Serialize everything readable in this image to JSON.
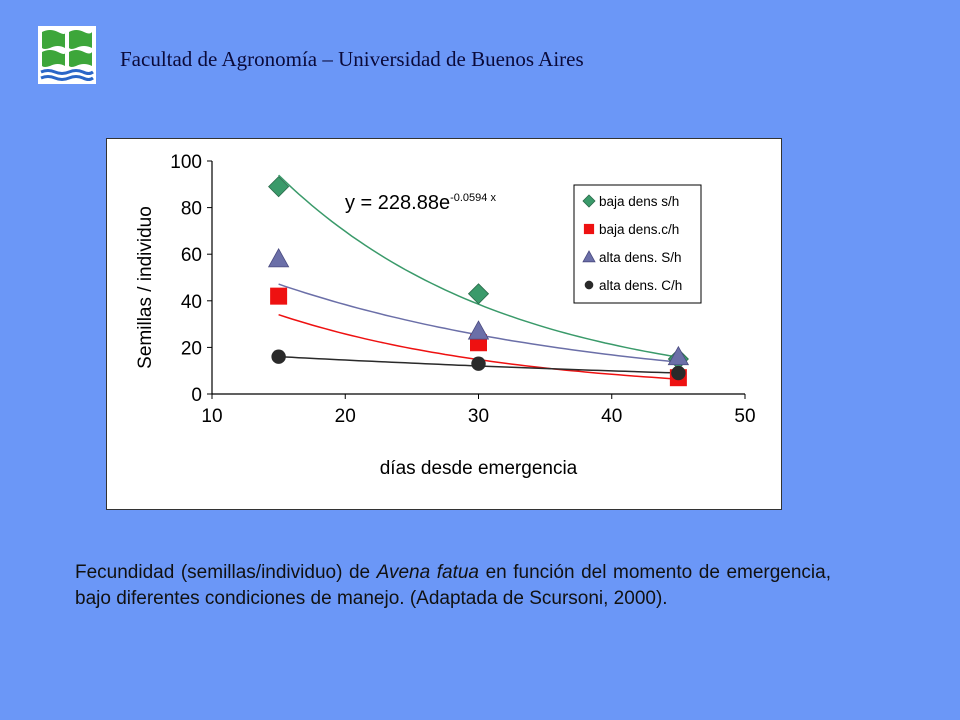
{
  "header": {
    "institution": "Facultad de Agronomía – Universidad de Buenos Aires"
  },
  "caption": {
    "part1": "Fecundidad (semillas/individuo) de ",
    "species": "Avena fatua",
    "part2": " en función del momento de emergencia, bajo diferentes condiciones de manejo. (Adaptada de Scursoni, 2000)."
  },
  "colors": {
    "background": "#6b97f7",
    "baja_sh": "#3a9a6a",
    "baja_ch": "#ee1111",
    "alta_sh": "#6b6fa8",
    "alta_ch": "#2a2a2a"
  },
  "chart_data": {
    "type": "scatter",
    "xlabel": "días desde emergencia",
    "ylabel": "Semillas / individuo",
    "xlim": [
      10,
      50
    ],
    "ylim": [
      0,
      100
    ],
    "xticks": [
      10,
      20,
      30,
      40,
      50
    ],
    "yticks": [
      0,
      20,
      40,
      60,
      80,
      100
    ],
    "grid": false,
    "legend": "top-right",
    "equation": {
      "base": "y = 228.88e",
      "exponent": "-0.0594 x"
    },
    "series": [
      {
        "name": "baja dens s/h",
        "marker": "diamond",
        "color": "#3a9a6a",
        "x": [
          15,
          30,
          45
        ],
        "y": [
          89,
          43,
          15
        ],
        "trend": {
          "type": "exponential",
          "a": 228.88,
          "b": -0.0594,
          "x": [
            15,
            45
          ]
        }
      },
      {
        "name": "baja dens.c/h",
        "marker": "square",
        "color": "#ee1111",
        "x": [
          15,
          30,
          45
        ],
        "y": [
          42,
          22,
          7
        ],
        "trend": {
          "type": "exponential",
          "a": 78.5,
          "b": -0.0557,
          "x": [
            15,
            45
          ]
        }
      },
      {
        "name": "alta dens. S/h",
        "marker": "triangle",
        "color": "#6b6fa8",
        "x": [
          15,
          30,
          45
        ],
        "y": [
          58,
          27,
          16
        ],
        "trend": {
          "type": "exponential",
          "a": 87.6,
          "b": -0.0413,
          "x": [
            15,
            45
          ]
        }
      },
      {
        "name": "alta dens. C/h",
        "marker": "circle",
        "color": "#2a2a2a",
        "x": [
          15,
          30,
          45
        ],
        "y": [
          16,
          13,
          9
        ],
        "trend": {
          "type": "exponential",
          "a": 21.4,
          "b": -0.0192,
          "x": [
            15,
            45
          ]
        }
      }
    ]
  }
}
